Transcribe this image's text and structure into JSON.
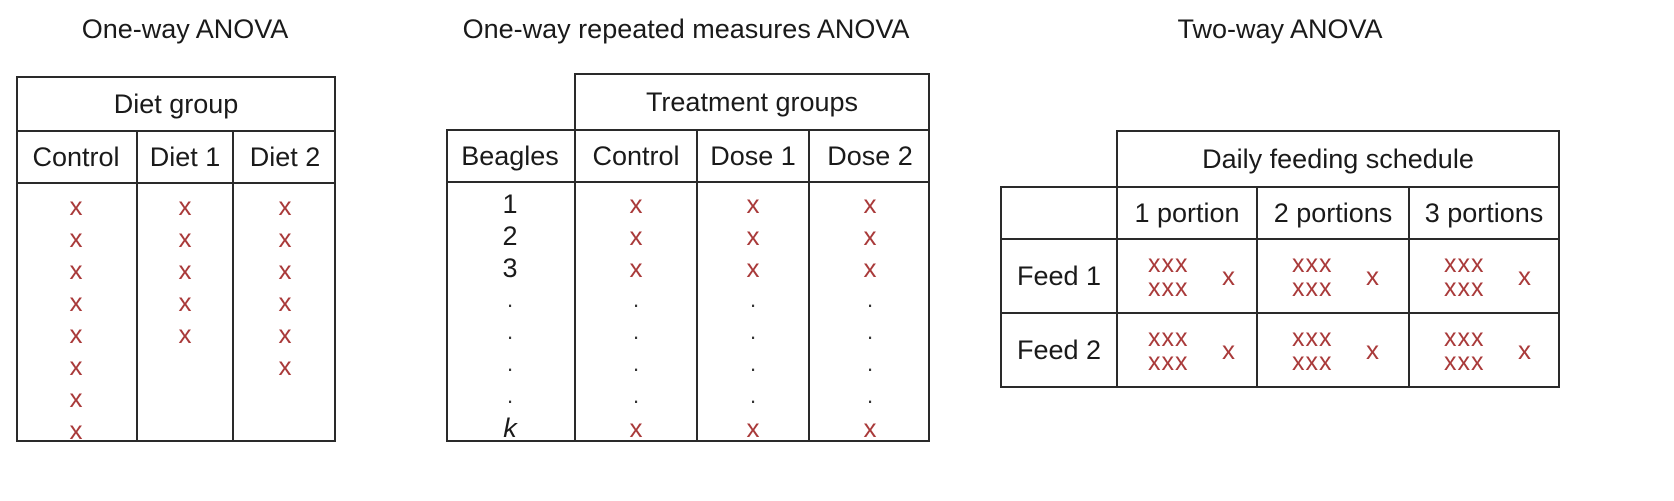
{
  "panel1": {
    "title": "One-way ANOVA",
    "group_header": "Diet group",
    "columns": [
      {
        "label": "Control",
        "count": 8
      },
      {
        "label": "Diet 1",
        "count": 5
      },
      {
        "label": "Diet 2",
        "count": 6
      }
    ]
  },
  "panel2": {
    "title": "One-way repeated measures ANOVA",
    "group_header": "Treatment groups",
    "row_header": "Beagles",
    "columns": [
      "Control",
      "Dose 1",
      "Dose 2"
    ],
    "subjects": [
      "1",
      "2",
      "3",
      ".",
      ".",
      ".",
      ".",
      "k"
    ]
  },
  "panel3": {
    "title": "Two-way ANOVA",
    "group_header": "Daily feeding schedule",
    "columns": [
      "1 portion",
      "2 portions",
      "3 portions"
    ],
    "rows": [
      "Feed 1",
      "Feed 2"
    ],
    "cell_marks": {
      "top": "xxx",
      "bottom": "xxx",
      "extra": "x"
    }
  },
  "marker": "x",
  "colors": {
    "marker": "#a93a3a",
    "lines": "#2a2a2a"
  }
}
